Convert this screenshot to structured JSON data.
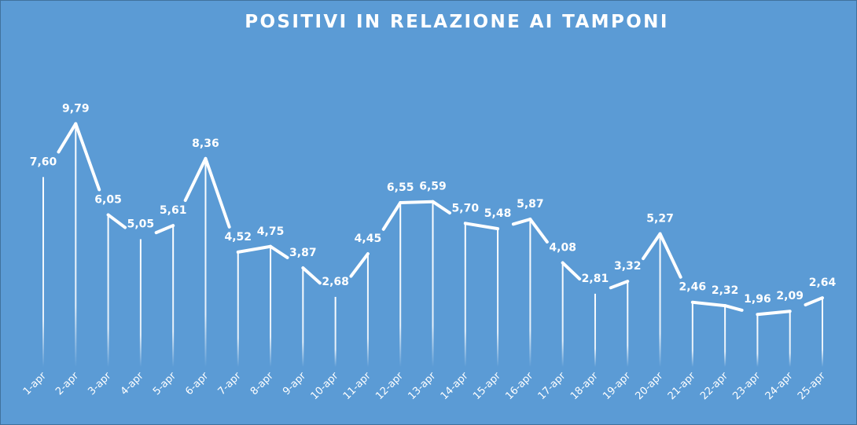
{
  "chart_data": {
    "type": "line",
    "title": "POSITIVI IN RELAZIONE AI TAMPONI",
    "xlabel": "",
    "ylabel": "",
    "categories": [
      "1-apr",
      "2-apr",
      "3-apr",
      "4-apr",
      "5-apr",
      "6-apr",
      "7-apr",
      "8-apr",
      "9-apr",
      "10-apr",
      "11-apr",
      "12-apr",
      "13-apr",
      "14-apr",
      "15-apr",
      "16-apr",
      "17-apr",
      "18-apr",
      "19-apr",
      "20-apr",
      "21-apr",
      "22-apr",
      "23-apr",
      "24-apr",
      "25-apr"
    ],
    "values": [
      7.6,
      9.79,
      6.05,
      5.05,
      5.61,
      8.36,
      4.52,
      4.75,
      3.87,
      2.68,
      4.45,
      6.55,
      6.59,
      5.7,
      5.48,
      5.87,
      4.08,
      2.81,
      3.32,
      5.27,
      2.46,
      2.32,
      1.96,
      2.09,
      2.64
    ],
    "data_labels": [
      "7,60",
      "9,79",
      "6,05",
      "5,05",
      "5,61",
      "8,36",
      "4,52",
      "4,75",
      "3,87",
      "2,68",
      "4,45",
      "6,55",
      "6,59",
      "5,70",
      "5,48",
      "5,87",
      "4,08",
      "2,81",
      "3,32",
      "5,27",
      "2,46",
      "2,32",
      "1,96",
      "2,09",
      "2,64"
    ],
    "drop_lines": true,
    "grid": false,
    "legend": "none",
    "colors": {
      "background": "#5b9bd5",
      "line": "#ffffff",
      "text": "#ffffff"
    }
  }
}
